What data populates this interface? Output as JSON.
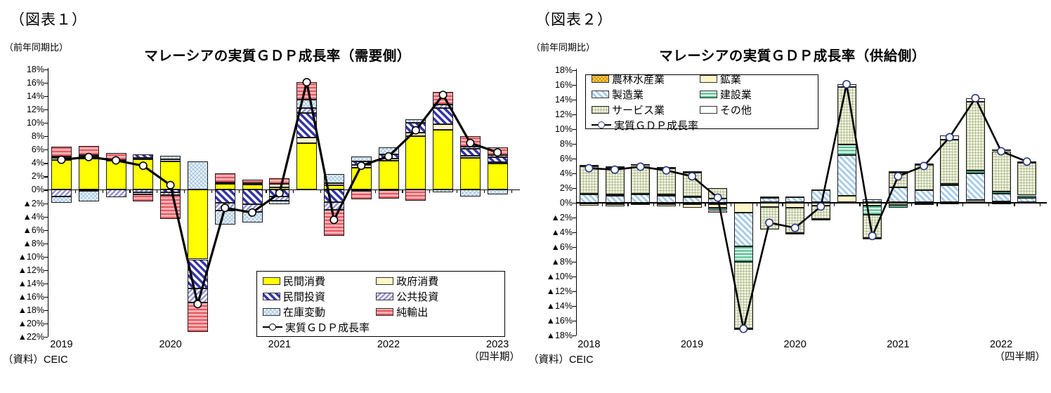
{
  "charts": [
    {
      "figure_label": "（図表１）",
      "axis_note": "（前年同期比）",
      "title": "マレーシアの実質ＧＤＰ成長率（需要側）",
      "source": "（資料）CEIC",
      "x_unit_label": "（四半期）",
      "y_axis": {
        "max": 18,
        "min": -22,
        "step": 2,
        "suffix": "%",
        "negative_prefix": "▲"
      },
      "x_labels": [
        "2019",
        "2020",
        "2021",
        "2022",
        "2023"
      ],
      "chart_data": {
        "type": "stacked-bar-line",
        "x_label_positions": [
          0,
          4,
          8,
          12,
          16
        ],
        "quarters": [
          "2019Q1",
          "2019Q2",
          "2019Q3",
          "2019Q4",
          "2020Q1",
          "2020Q2",
          "2020Q3",
          "2020Q4",
          "2021Q1",
          "2021Q2",
          "2021Q3",
          "2021Q4",
          "2022Q1",
          "2022Q2",
          "2022Q3",
          "2022Q4",
          "2023Q1"
        ],
        "series": [
          {
            "name": "民間消費",
            "pattern": "solid-yellow",
            "values": [
              4.5,
              4.7,
              4.3,
              4.6,
              4.2,
              -10.4,
              0.9,
              0.8,
              0.4,
              7.0,
              0.7,
              3.3,
              4.3,
              8.0,
              9.0,
              4.8,
              3.9
            ]
          },
          {
            "name": "政府消費",
            "pattern": "solid-cream",
            "values": [
              0.25,
              0.3,
              0.2,
              0.2,
              0.4,
              0.0,
              0.2,
              0.2,
              0.5,
              0.8,
              0.3,
              0.4,
              0.4,
              0.5,
              0.8,
              0.3,
              0.2
            ]
          },
          {
            "name": "民間投資",
            "pattern": "diag-blue",
            "values": [
              0.25,
              0.2,
              0.0,
              0.5,
              -0.4,
              -4.4,
              -1.9,
              -2.2,
              -1.0,
              3.7,
              -1.8,
              0.5,
              0.6,
              1.5,
              2.4,
              1.0,
              0.8
            ]
          },
          {
            "name": "公共投資",
            "pattern": "diag-violet",
            "values": [
              -1.0,
              -0.2,
              -1.1,
              -0.4,
              -0.4,
              -2.1,
              -1.2,
              -1.1,
              -0.6,
              0.7,
              -1.2,
              -0.2,
              -0.1,
              0.0,
              0.5,
              0.4,
              0.3
            ]
          },
          {
            "name": "在庫変動",
            "pattern": "crosshatch-lightblue",
            "values": [
              -1.0,
              -1.5,
              0.0,
              -0.3,
              0.5,
              4.2,
              -2.1,
              -1.6,
              -0.6,
              1.3,
              1.4,
              0.8,
              1.0,
              0.5,
              -0.4,
              -1.0,
              -0.7
            ]
          },
          {
            "name": "純輸出",
            "pattern": "hlines-red",
            "values": [
              1.5,
              1.4,
              1.0,
              -1.0,
              -3.6,
              -4.4,
              1.4,
              0.5,
              0.8,
              2.6,
              -3.9,
              -1.2,
              -1.2,
              -1.6,
              1.9,
              1.5,
              1.1
            ]
          }
        ],
        "line": {
          "name": "実質ＧＤＰ成長率",
          "color": "#000000",
          "marker_fill": "#FFFFFF",
          "marker_stroke": "#000000",
          "values": [
            4.5,
            4.9,
            4.4,
            3.6,
            0.7,
            -17.1,
            -2.7,
            -3.4,
            -0.5,
            16.1,
            -4.5,
            3.6,
            5.0,
            8.9,
            14.2,
            7.0,
            5.6
          ]
        }
      }
    },
    {
      "figure_label": "（図表２）",
      "axis_note": "（前年同期比）",
      "title": "マレーシアの実質ＧＤＰ成長率（供給側）",
      "source": "（資料）CEIC",
      "x_unit_label": "（四半期）",
      "y_axis": {
        "max": 18,
        "min": -18,
        "step": 2,
        "suffix": "%",
        "negative_prefix": "▲"
      },
      "x_labels": [
        "2018",
        "2019",
        "2020",
        "2021",
        "2022"
      ],
      "chart_data": {
        "type": "stacked-bar-line",
        "x_label_positions": [
          0,
          4,
          8,
          12,
          16
        ],
        "quarters": [
          "2018Q4",
          "2019Q1",
          "2019Q2",
          "2019Q3",
          "2019Q4",
          "2020Q1",
          "2020Q2",
          "2020Q3",
          "2020Q4",
          "2021Q1",
          "2021Q2",
          "2021Q3",
          "2021Q4",
          "2022Q1",
          "2022Q2",
          "2022Q3",
          "2022Q4",
          "2023Q1"
        ],
        "series": [
          {
            "name": "農林水産業",
            "pattern": "crosshatch-orange",
            "values": [
              -0.1,
              -0.15,
              -0.1,
              -0.15,
              -0.2,
              -0.2,
              0.1,
              0.1,
              0.1,
              0.1,
              0.1,
              0.1,
              0.1,
              0.1,
              0.1,
              0.1,
              -0.2,
              0.0
            ]
          },
          {
            "name": "鉱業",
            "pattern": "solid-cream",
            "values": [
              -0.3,
              -0.35,
              -0.2,
              -0.35,
              -0.5,
              -0.5,
              -1.3,
              -0.6,
              -0.7,
              -0.4,
              0.9,
              -0.4,
              -0.3,
              -0.1,
              -0.2,
              0.3,
              0.2,
              0.1
            ]
          },
          {
            "name": "製造業",
            "pattern": "diag-lightblue",
            "values": [
              1.1,
              1.0,
              1.1,
              1.0,
              0.8,
              0.6,
              -4.6,
              0.6,
              0.7,
              1.6,
              5.5,
              0.4,
              2.0,
              1.6,
              2.3,
              3.6,
              1.0,
              0.6
            ]
          },
          {
            "name": "建設業",
            "pattern": "hlines-green",
            "values": [
              0.1,
              0.1,
              0.1,
              0.1,
              0.1,
              -0.3,
              -2.1,
              0.2,
              0.1,
              0.1,
              1.4,
              -1.2,
              -0.4,
              -0.2,
              0.2,
              0.4,
              0.3,
              0.3
            ]
          },
          {
            "name": "サービス業",
            "pattern": "grid-green",
            "values": [
              3.8,
              3.7,
              3.8,
              3.6,
              3.2,
              1.4,
              -9.0,
              -3.0,
              -3.4,
              -1.8,
              7.8,
              -3.2,
              2.0,
              3.4,
              6.0,
              9.3,
              5.5,
              4.4
            ]
          },
          {
            "name": "その他",
            "pattern": "solid-white",
            "values": [
              0.1,
              0.2,
              0.2,
              0.2,
              0.2,
              -0.3,
              -0.2,
              0.0,
              -0.2,
              -0.1,
              0.4,
              -0.2,
              0.2,
              0.2,
              0.5,
              0.5,
              0.2,
              0.2
            ]
          }
        ],
        "line": {
          "name": "実質ＧＤＰ成長率",
          "color": "#000000",
          "marker_fill": "#FFFFFF",
          "marker_stroke": "#2B3580",
          "values": [
            4.7,
            4.5,
            4.9,
            4.4,
            3.6,
            0.7,
            -17.1,
            -2.7,
            -3.4,
            -0.5,
            16.1,
            -4.5,
            3.6,
            5.0,
            8.9,
            14.2,
            7.0,
            5.6
          ]
        }
      }
    }
  ]
}
